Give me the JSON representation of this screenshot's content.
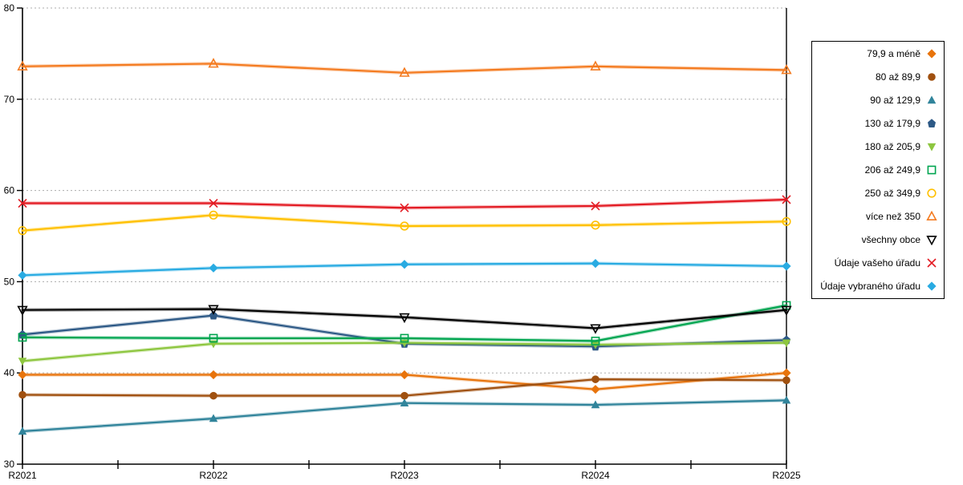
{
  "chart_data": {
    "type": "line",
    "title": "",
    "xlabel": "",
    "ylabel": "",
    "categories": [
      "R2021",
      "R2022",
      "R2023",
      "R2024",
      "R2025"
    ],
    "ylim": [
      30,
      80
    ],
    "y_ticks": [
      30,
      40,
      50,
      60,
      70,
      80
    ],
    "grid": "horizontal-dotted",
    "legend_position": "right",
    "axis_color": "#000000",
    "gridline_color": "#adadad",
    "series": [
      {
        "name": "79,9 a méně",
        "marker": "diamond",
        "marker_fill": "filled",
        "color": "#e8740c",
        "values": [
          39.8,
          39.8,
          39.8,
          38.2,
          40.0
        ]
      },
      {
        "name": "80 až 89,9",
        "marker": "circle",
        "marker_fill": "filled",
        "color": "#a0500f",
        "values": [
          37.6,
          37.5,
          37.5,
          39.3,
          39.2
        ]
      },
      {
        "name": "90 až 129,9",
        "marker": "triangle-up",
        "marker_fill": "filled",
        "color": "#31849b",
        "values": [
          33.6,
          35.0,
          36.7,
          36.5,
          37.0
        ]
      },
      {
        "name": "130 až 179,9",
        "marker": "pentagon",
        "marker_fill": "filled",
        "color": "#2d5986",
        "values": [
          44.2,
          46.3,
          43.2,
          42.9,
          43.6
        ]
      },
      {
        "name": "180 až 205,9",
        "marker": "triangle-down",
        "marker_fill": "filled",
        "color": "#8dc63f",
        "values": [
          41.3,
          43.2,
          43.3,
          43.1,
          43.3
        ]
      },
      {
        "name": "206 až 249,9",
        "marker": "square",
        "marker_fill": "open",
        "color": "#00a550",
        "values": [
          43.9,
          43.8,
          43.8,
          43.5,
          47.4
        ]
      },
      {
        "name": "250 až 349,9",
        "marker": "circle",
        "marker_fill": "open",
        "color": "#ffc000",
        "values": [
          55.6,
          57.3,
          56.1,
          56.2,
          56.6
        ]
      },
      {
        "name": "více než 350",
        "marker": "triangle-up",
        "marker_fill": "open",
        "color": "#f47b20",
        "values": [
          73.6,
          73.9,
          72.9,
          73.6,
          73.2
        ]
      },
      {
        "name": "všechny obce",
        "marker": "triangle-down",
        "marker_fill": "open",
        "color": "#000000",
        "values": [
          46.9,
          47.0,
          46.1,
          44.9,
          46.9
        ]
      },
      {
        "name": "Údaje vašeho úřadu",
        "marker": "x",
        "marker_fill": "open",
        "color": "#e31b23",
        "values": [
          58.6,
          58.6,
          58.1,
          58.3,
          59.0
        ]
      },
      {
        "name": "Údaje vybraného úřadu",
        "marker": "diamond",
        "marker_fill": "filled",
        "color": "#29abe2",
        "values": [
          50.7,
          51.5,
          51.9,
          52.0,
          51.7
        ]
      }
    ]
  }
}
